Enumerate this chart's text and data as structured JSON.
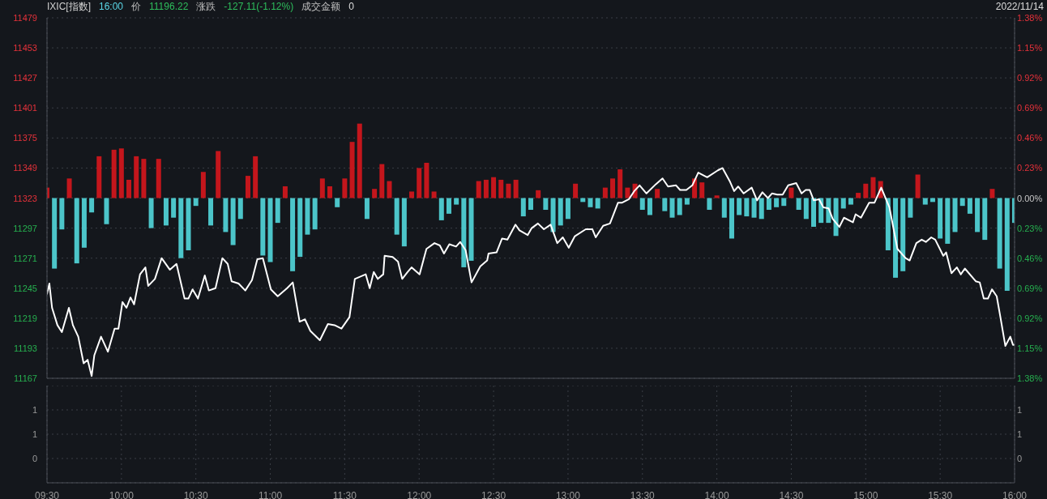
{
  "chart_data": [
    {
      "type": "line",
      "title": "IXIC[指数]",
      "annotations": [
        "16:00",
        "价",
        "11196.22",
        "涨跌",
        "-127.11(-1.12%)",
        "成交金额",
        "0",
        "2022/11/14"
      ],
      "xlim": [
        9.5,
        16
      ],
      "xticks": [
        {
          "value": 9.5,
          "label": null
        },
        {
          "value": 10,
          "label": null
        },
        {
          "value": 10.5,
          "label": null
        },
        {
          "value": 11,
          "label": null
        },
        {
          "value": 11.5,
          "label": null
        },
        {
          "value": 12,
          "label": null
        },
        {
          "value": 12.5,
          "label": null
        },
        {
          "value": 13,
          "label": null
        },
        {
          "value": 13.5,
          "label": null
        },
        {
          "value": 14,
          "label": null
        },
        {
          "value": 14.5,
          "label": null
        },
        {
          "value": 15,
          "label": null
        },
        {
          "value": 15.5,
          "label": null
        },
        {
          "value": 16,
          "label": null
        }
      ],
      "ylim": [
        11167,
        11479
      ],
      "yticks": [
        11167,
        11193,
        11219,
        11245,
        11271,
        11297,
        11323,
        11349,
        11375,
        11401,
        11427,
        11453,
        11479
      ],
      "y2lim": [
        -1.38,
        1.38
      ],
      "y2ticks": [
        {
          "value": -1.38,
          "label": "1.38%"
        },
        {
          "value": -1.15,
          "label": "1.15%"
        },
        {
          "value": -0.92,
          "label": "0.92%"
        },
        {
          "value": -0.69,
          "label": "0.69%"
        },
        {
          "value": -0.46,
          "label": "0.46%"
        },
        {
          "value": -0.23,
          "label": "0.23%"
        },
        {
          "value": 0,
          "label": "0.00%"
        },
        {
          "value": 0.23,
          "label": "0.23%"
        },
        {
          "value": 0.46,
          "label": "0.46%"
        },
        {
          "value": 0.69,
          "label": "0.69%"
        },
        {
          "value": 0.92,
          "label": "0.92%"
        },
        {
          "value": 1.15,
          "label": "1.15%"
        },
        {
          "value": 1.38,
          "label": "1.38%"
        }
      ],
      "tick_labels": "y",
      "grid": true,
      "series": [
        {
          "type": "bar",
          "axis": "y2",
          "x": [
            9.5,
            9.55,
            9.6,
            9.65,
            9.7,
            9.75,
            9.8,
            9.85,
            9.9,
            9.95,
            10,
            10.05,
            10.1,
            10.15,
            10.2,
            10.25,
            10.3,
            10.35,
            10.4,
            10.45,
            10.5,
            10.55,
            10.6,
            10.65,
            10.7,
            10.75,
            10.8,
            10.85,
            10.9,
            10.95,
            11,
            11.05,
            11.1,
            11.15,
            11.2,
            11.25,
            11.3,
            11.35,
            11.4,
            11.45,
            11.5,
            11.55,
            11.6,
            11.65,
            11.7,
            11.75,
            11.8,
            11.85,
            11.9,
            11.95,
            12,
            12.05,
            12.1,
            12.15,
            12.2,
            12.25,
            12.3,
            12.35,
            12.4,
            12.45,
            12.5,
            12.55,
            12.6,
            12.65,
            12.7,
            12.75,
            12.8,
            12.85,
            12.9,
            12.95,
            13,
            13.05,
            13.1,
            13.15,
            13.2,
            13.25,
            13.3,
            13.35,
            13.4,
            13.45,
            13.5,
            13.55,
            13.6,
            13.65,
            13.7,
            13.75,
            13.8,
            13.85,
            13.9,
            13.95,
            14,
            14.05,
            14.1,
            14.15,
            14.2,
            14.25,
            14.3,
            14.35,
            14.4,
            14.45,
            14.5,
            14.55,
            14.6,
            14.65,
            14.7,
            14.75,
            14.8,
            14.85,
            14.9,
            14.95,
            15,
            15.05,
            15.1,
            15.15,
            15.2,
            15.25,
            15.3,
            15.35,
            15.4,
            15.45,
            15.5,
            15.55,
            15.6,
            15.65,
            15.7,
            15.75,
            15.8,
            15.85,
            15.9,
            15.95,
            16
          ],
          "values": [
            0.08,
            -0.54,
            -0.24,
            0.15,
            -0.5,
            -0.38,
            -0.11,
            0.32,
            -0.2,
            0.37,
            0.38,
            0.14,
            0.32,
            0.3,
            -0.23,
            0.3,
            -0.21,
            -0.15,
            -0.46,
            -0.4,
            -0.06,
            0.2,
            -0.21,
            0.36,
            -0.26,
            -0.36,
            -0.16,
            0.17,
            0.32,
            -0.44,
            -0.49,
            -0.19,
            0.09,
            -0.56,
            -0.45,
            -0.28,
            -0.24,
            0.15,
            0.09,
            -0.07,
            0.15,
            0.43,
            0.57,
            -0.16,
            0.07,
            0.26,
            0.13,
            -0.28,
            -0.37,
            0.05,
            0.23,
            0.27,
            0.05,
            -0.17,
            -0.12,
            -0.05,
            -0.53,
            -0.48,
            0.13,
            0.14,
            0.16,
            0.14,
            0.11,
            0.14,
            -0.14,
            -0.09,
            0.06,
            -0.09,
            -0.26,
            -0.21,
            -0.16,
            0.11,
            -0.03,
            -0.07,
            -0.08,
            0.08,
            0.15,
            0.22,
            0.08,
            0.11,
            -0.09,
            -0.13,
            0.07,
            -0.1,
            -0.15,
            -0.13,
            -0.05,
            0.15,
            0.12,
            -0.09,
            0.02,
            -0.15,
            -0.31,
            -0.13,
            -0.14,
            -0.15,
            -0.16,
            -0.09,
            -0.07,
            -0.06,
            0.08,
            -0.09,
            -0.16,
            -0.22,
            -0.19,
            -0.19,
            -0.29,
            -0.08,
            -0.05,
            0.04,
            0.11,
            0.16,
            0.13,
            -0.4,
            -0.61,
            -0.56,
            -0.15,
            0.18,
            -0.05,
            -0.03,
            -0.31,
            -0.35,
            -0.26,
            -0.06,
            -0.12,
            -0.26,
            -0.32,
            0.07,
            -0.54,
            -0.71,
            -0.19
          ],
          "colors": [
            "#c4161c",
            "#4cc5c9",
            "#4cc5c9",
            "#c4161c",
            "#4cc5c9",
            "#4cc5c9",
            "#4cc5c9",
            "#c4161c",
            "#4cc5c9",
            "#c4161c",
            "#c4161c",
            "#c4161c",
            "#c4161c",
            "#c4161c",
            "#4cc5c9",
            "#c4161c",
            "#4cc5c9",
            "#4cc5c9",
            "#4cc5c9",
            "#4cc5c9",
            "#4cc5c9",
            "#c4161c",
            "#4cc5c9",
            "#c4161c",
            "#4cc5c9",
            "#4cc5c9",
            "#4cc5c9",
            "#c4161c",
            "#c4161c",
            "#4cc5c9",
            "#4cc5c9",
            "#4cc5c9",
            "#c4161c",
            "#4cc5c9",
            "#4cc5c9",
            "#4cc5c9",
            "#4cc5c9",
            "#c4161c",
            "#c4161c",
            "#4cc5c9",
            "#c4161c",
            "#c4161c",
            "#c4161c",
            "#4cc5c9",
            "#c4161c",
            "#c4161c",
            "#c4161c",
            "#4cc5c9",
            "#4cc5c9",
            "#c4161c",
            "#c4161c",
            "#c4161c",
            "#c4161c",
            "#4cc5c9",
            "#4cc5c9",
            "#4cc5c9",
            "#4cc5c9",
            "#4cc5c9",
            "#c4161c",
            "#c4161c",
            "#c4161c",
            "#c4161c",
            "#c4161c",
            "#c4161c",
            "#4cc5c9",
            "#4cc5c9",
            "#c4161c",
            "#4cc5c9",
            "#4cc5c9",
            "#4cc5c9",
            "#4cc5c9",
            "#c4161c",
            "#4cc5c9",
            "#4cc5c9",
            "#4cc5c9",
            "#c4161c",
            "#c4161c",
            "#c4161c",
            "#c4161c",
            "#c4161c",
            "#4cc5c9",
            "#4cc5c9",
            "#c4161c",
            "#4cc5c9",
            "#4cc5c9",
            "#4cc5c9",
            "#4cc5c9",
            "#c4161c",
            "#c4161c",
            "#4cc5c9",
            "#c4161c",
            "#4cc5c9",
            "#4cc5c9",
            "#4cc5c9",
            "#4cc5c9",
            "#4cc5c9",
            "#4cc5c9",
            "#4cc5c9",
            "#4cc5c9",
            "#4cc5c9",
            "#c4161c",
            "#4cc5c9",
            "#4cc5c9",
            "#4cc5c9",
            "#4cc5c9",
            "#4cc5c9",
            "#4cc5c9",
            "#4cc5c9",
            "#4cc5c9",
            "#c4161c",
            "#c4161c",
            "#c4161c",
            "#c4161c",
            "#4cc5c9",
            "#4cc5c9",
            "#4cc5c9",
            "#4cc5c9",
            "#c4161c",
            "#4cc5c9",
            "#4cc5c9",
            "#4cc5c9",
            "#4cc5c9",
            "#4cc5c9",
            "#4cc5c9",
            "#4cc5c9",
            "#4cc5c9",
            "#4cc5c9",
            "#c4161c",
            "#4cc5c9",
            "#4cc5c9",
            "#4cc5c9"
          ]
        },
        {
          "color": "#ffffff",
          "x": [
            9.5,
            9.516,
            9.534,
            9.57,
            9.6,
            9.647,
            9.674,
            9.71,
            9.746,
            9.773,
            9.8,
            9.818,
            9.863,
            9.909,
            9.954,
            9.98,
            10.007,
            10.034,
            10.061,
            10.085,
            10.125,
            10.161,
            10.18,
            10.225,
            10.27,
            10.325,
            10.37,
            10.424,
            10.45,
            10.478,
            10.514,
            10.56,
            10.587,
            10.632,
            10.678,
            10.714,
            10.74,
            10.787,
            10.832,
            10.877,
            10.913,
            10.95,
            11.004,
            11.05,
            11.113,
            11.151,
            11.197,
            11.233,
            11.269,
            11.333,
            11.387,
            11.432,
            11.478,
            11.532,
            11.568,
            11.641,
            11.668,
            11.695,
            11.722,
            11.759,
            11.768,
            11.822,
            11.858,
            11.886,
            11.922,
            11.949,
            12.003,
            12.049,
            12.103,
            12.139,
            12.167,
            12.203,
            12.248,
            12.276,
            12.312,
            12.352,
            12.411,
            12.457,
            12.466,
            12.52,
            12.557,
            12.593,
            12.647,
            12.674,
            12.729,
            12.756,
            12.798,
            12.838,
            12.883,
            12.928,
            12.965,
            13.005,
            13.046,
            13.119,
            13.164,
            13.186,
            13.236,
            13.282,
            13.336,
            13.364,
            13.409,
            13.445,
            13.481,
            13.527,
            13.59,
            13.635,
            13.672,
            13.726,
            13.753,
            13.795,
            13.835,
            13.875,
            13.935,
            14.007,
            14.038,
            14.089,
            14.116,
            14.143,
            14.18,
            14.234,
            14.27,
            14.306,
            14.343,
            14.37,
            14.406,
            14.442,
            14.479,
            14.533,
            14.569,
            14.597,
            14.624,
            14.651,
            14.687,
            14.715,
            14.751,
            14.778,
            14.823,
            14.854,
            14.914,
            14.932,
            14.968,
            15.023,
            15.059,
            15.104,
            15.159,
            15.213,
            15.268,
            15.295,
            15.34,
            15.376,
            15.404,
            15.44,
            15.467,
            15.521,
            15.54,
            15.576,
            15.612,
            15.639,
            15.666,
            15.739,
            15.766,
            15.793,
            15.821,
            15.848,
            15.88,
            15.902,
            15.938,
            15.971,
            15.989,
            16
          ],
          "values": [
            11240,
            11249,
            11228,
            11213,
            11207,
            11228,
            11213,
            11203,
            11180,
            11183,
            11169,
            11187,
            11203,
            11190,
            11210,
            11210,
            11233,
            11228,
            11237,
            11231,
            11257,
            11263,
            11247,
            11253,
            11271,
            11261,
            11266,
            11236,
            11236,
            11244,
            11236,
            11256,
            11243,
            11245,
            11271,
            11266,
            11251,
            11249,
            11243,
            11252,
            11270,
            11271,
            11244,
            11238,
            11245,
            11250,
            11216,
            11218,
            11208,
            11200,
            11214,
            11213,
            11210,
            11220,
            11253,
            11257,
            11245,
            11259,
            11253,
            11257,
            11273,
            11272,
            11268,
            11253,
            11259,
            11263,
            11257,
            11279,
            11284,
            11282,
            11275,
            11283,
            11281,
            11285,
            11278,
            11250,
            11264,
            11269,
            11275,
            11276,
            11288,
            11287,
            11300,
            11295,
            11291,
            11297,
            11301,
            11296,
            11300,
            11284,
            11289,
            11280,
            11290,
            11296,
            11296,
            11289,
            11299,
            11301,
            11319,
            11319,
            11322,
            11329,
            11334,
            11327,
            11335,
            11340,
            11333,
            11334,
            11330,
            11330,
            11334,
            11345,
            11341,
            11347,
            11349,
            11337,
            11329,
            11333,
            11327,
            11332,
            11321,
            11328,
            11323,
            11327,
            11326,
            11326,
            11334,
            11336,
            11327,
            11330,
            11330,
            11321,
            11322,
            11315,
            11314,
            11305,
            11298,
            11306,
            11302,
            11309,
            11306,
            11319,
            11319,
            11332,
            11315,
            11279,
            11271,
            11269,
            11284,
            11287,
            11285,
            11289,
            11287,
            11273,
            11276,
            11258,
            11263,
            11257,
            11262,
            11251,
            11250,
            11236,
            11236,
            11244,
            11238,
            11222,
            11195,
            11203,
            11196,
            11196
          ]
        }
      ]
    },
    {
      "type": "bar",
      "xlim": [
        9.5,
        16
      ],
      "xticks": [
        {
          "value": 9.5,
          "label": "09:30"
        },
        {
          "value": 10,
          "label": "10:00"
        },
        {
          "value": 10.5,
          "label": "10:30"
        },
        {
          "value": 11,
          "label": "11:00"
        },
        {
          "value": 11.5,
          "label": "11:30"
        },
        {
          "value": 12,
          "label": "12:00"
        },
        {
          "value": 12.5,
          "label": "12:30"
        },
        {
          "value": 13,
          "label": "13:00"
        },
        {
          "value": 13.5,
          "label": "13:30"
        },
        {
          "value": 14,
          "label": "14:00"
        },
        {
          "value": 14.5,
          "label": "14:30"
        },
        {
          "value": 15,
          "label": "15:00"
        },
        {
          "value": 15.5,
          "label": "15:30"
        },
        {
          "value": 16,
          "label": "16:00"
        }
      ],
      "ylim": [
        -0.5,
        1.5
      ],
      "yticks": [
        0,
        {
          "value": 0.5,
          "label": "1"
        },
        1
      ],
      "y2lim": [
        -0.5,
        1.5
      ],
      "y2ticks": [
        0,
        {
          "value": 0.5,
          "label": "1"
        },
        1
      ],
      "grid": true
    }
  ]
}
